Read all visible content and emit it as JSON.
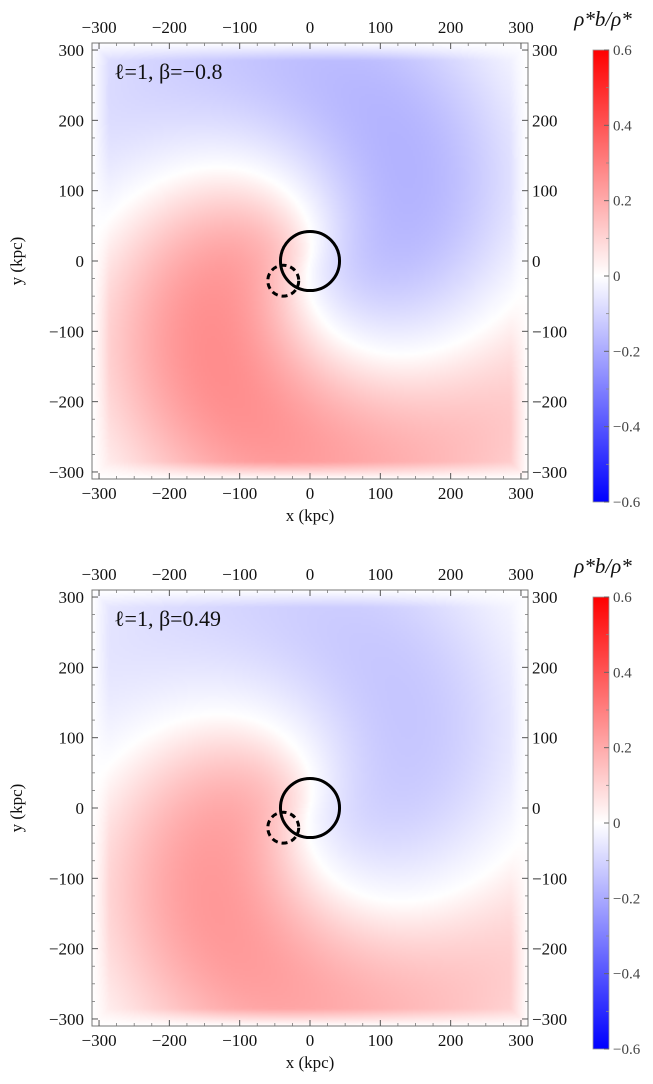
{
  "chart_data": [
    {
      "type": "heatmap",
      "annotation": "ℓ=1, β=−0.8",
      "xlabel": "x (kpc)",
      "ylabel": "y (kpc)",
      "xlim": [
        -310,
        310
      ],
      "ylim": [
        -310,
        310
      ],
      "ticks": [
        -300,
        -200,
        -100,
        0,
        100,
        200,
        300
      ],
      "tick_labels": [
        "−300",
        "−200",
        "−100",
        "0",
        "100",
        "200",
        "300"
      ],
      "field_peak": {
        "max_positive": 0.3,
        "max_negative": -0.2
      },
      "circles": [
        {
          "style": "solid",
          "cx": 0,
          "cy": 0,
          "r": 42
        },
        {
          "style": "dashed",
          "cx": -38,
          "cy": -28,
          "r": 22
        }
      ],
      "colorbar": {
        "title": "ρ*b/ρ*",
        "range": [
          -0.6,
          0.6
        ],
        "ticks": [
          0.6,
          0.4,
          0.2,
          0,
          -0.2,
          -0.4,
          -0.6
        ],
        "tick_labels": [
          "0.6",
          "0.4",
          "0.2",
          "0",
          "−0.2",
          "−0.4",
          "−0.6"
        ],
        "colors": {
          "positive": "#ff0000",
          "zero": "#ffffff",
          "negative": "#0000ff"
        }
      }
    },
    {
      "type": "heatmap",
      "annotation": "ℓ=1, β=0.49",
      "xlabel": "x (kpc)",
      "ylabel": "y (kpc)",
      "xlim": [
        -310,
        310
      ],
      "ylim": [
        -310,
        310
      ],
      "ticks": [
        -300,
        -200,
        -100,
        0,
        100,
        200,
        300
      ],
      "tick_labels": [
        "−300",
        "−200",
        "−100",
        "0",
        "100",
        "200",
        "300"
      ],
      "field_peak": {
        "max_positive": 0.27,
        "max_negative": -0.15
      },
      "circles": [
        {
          "style": "solid",
          "cx": 0,
          "cy": 0,
          "r": 42
        },
        {
          "style": "dashed",
          "cx": -38,
          "cy": -28,
          "r": 22
        }
      ],
      "colorbar": {
        "title": "ρ*b/ρ*",
        "range": [
          -0.6,
          0.6
        ],
        "ticks": [
          0.6,
          0.4,
          0.2,
          0,
          -0.2,
          -0.4,
          -0.6
        ],
        "tick_labels": [
          "0.6",
          "0.4",
          "0.2",
          "0",
          "−0.2",
          "−0.4",
          "−0.6"
        ],
        "colors": {
          "positive": "#ff0000",
          "zero": "#ffffff",
          "negative": "#0000ff"
        }
      }
    }
  ]
}
